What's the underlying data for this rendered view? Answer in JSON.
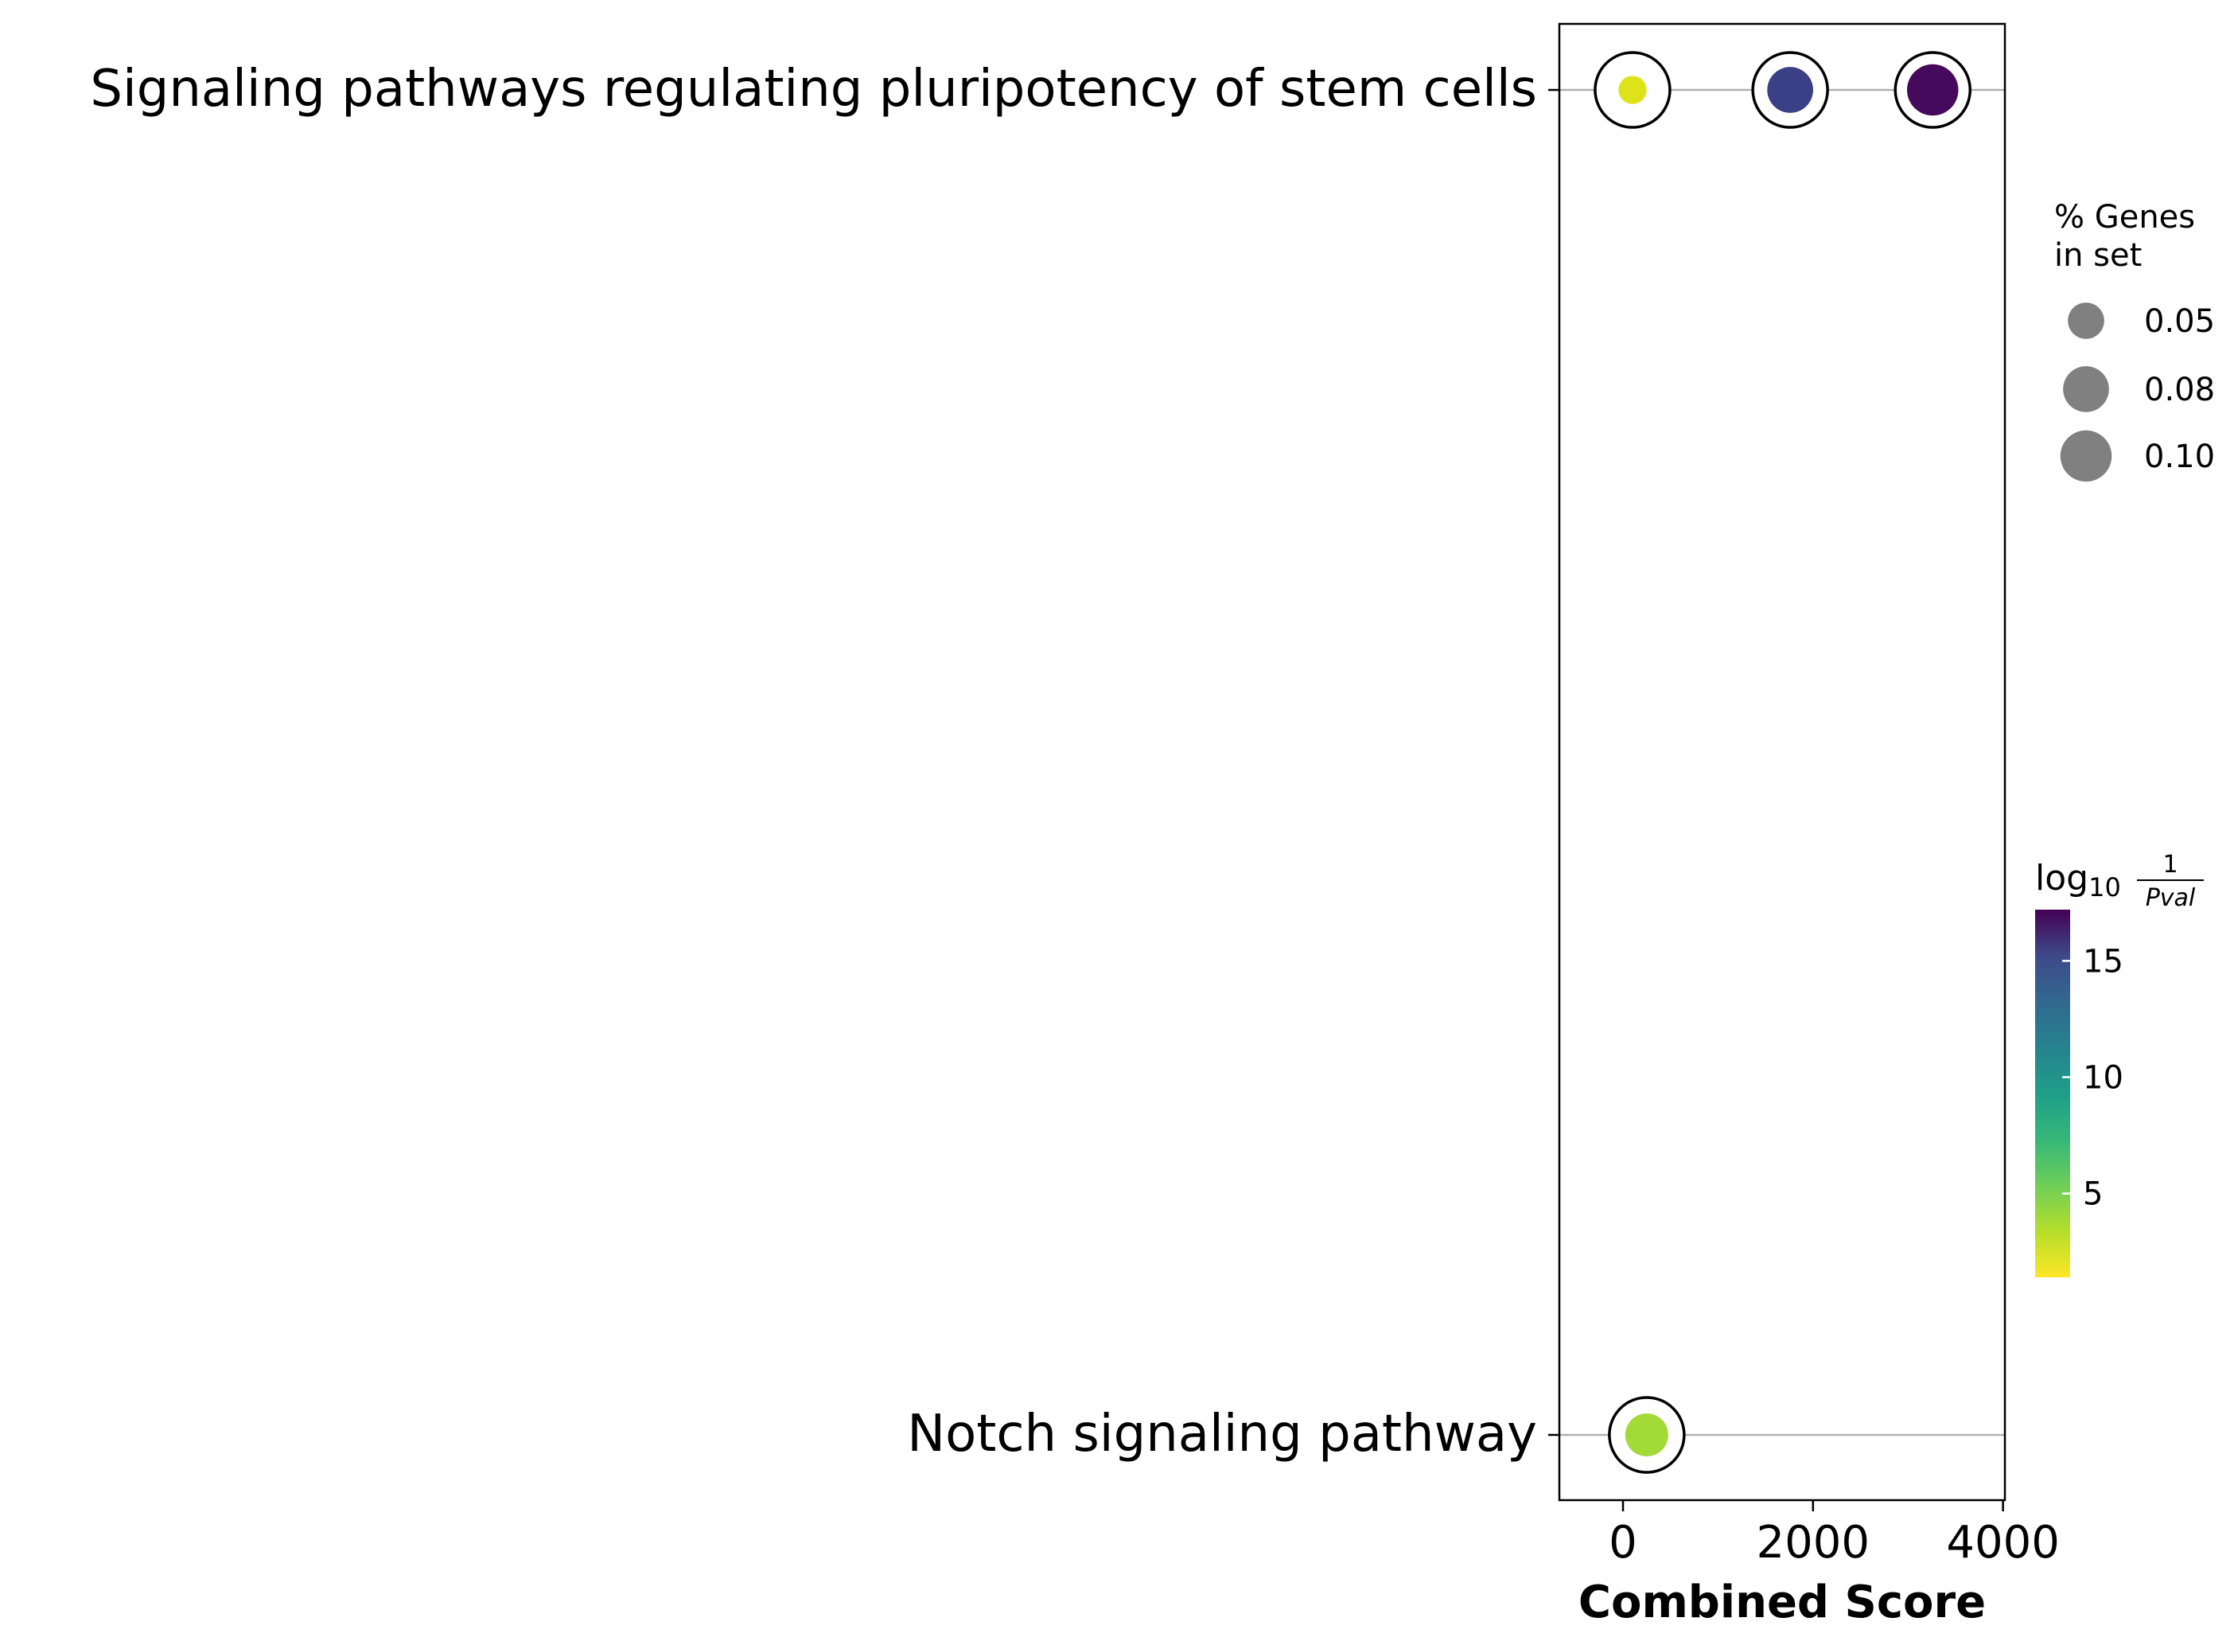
{
  "chart_data": {
    "type": "scatter",
    "title": "",
    "xlabel": "Combined Score",
    "ylabel": "",
    "xlim": [
      -670,
      4020
    ],
    "xticks": [
      0,
      2000,
      4000
    ],
    "categories": [
      "Signaling pathways regulating pluripotency of stem cells",
      "Notch signaling pathway"
    ],
    "points": [
      {
        "term": "Signaling pathways regulating pluripotency of stem cells",
        "combined_score": 100,
        "log10_inv_pval": 2.2,
        "pct_genes": 0.03,
        "color": "#dde318"
      },
      {
        "term": "Signaling pathways regulating pluripotency of stem cells",
        "combined_score": 1760,
        "log10_inv_pval": 15.6,
        "pct_genes": 0.08,
        "color": "#3b3f86"
      },
      {
        "term": "Signaling pathways regulating pluripotency of stem cells",
        "combined_score": 3260,
        "log10_inv_pval": 17.0,
        "pct_genes": 0.1,
        "color": "#450a5c"
      },
      {
        "term": "Notch signaling pathway",
        "combined_score": 250,
        "log10_inv_pval": 4.0,
        "pct_genes": 0.07,
        "color": "#a2da37"
      }
    ],
    "size_legend": {
      "title_lines": [
        "% Genes",
        "in set"
      ],
      "entries": [
        {
          "label": "0.05",
          "value": 0.05
        },
        {
          "label": "0.08",
          "value": 0.08
        },
        {
          "label": "0.10",
          "value": 0.1
        }
      ]
    },
    "colorbar": {
      "title": "log",
      "title_sub": "10",
      "frac_num": "1",
      "frac_den": "Pval",
      "ticks": [
        {
          "label": "5",
          "value": 5
        },
        {
          "label": "10",
          "value": 10
        },
        {
          "label": "15",
          "value": 15
        }
      ],
      "range": [
        1.4,
        17.2
      ],
      "colormap": "viridis_r"
    },
    "grid": "horizontal lines at each category",
    "legend_position": "right"
  }
}
